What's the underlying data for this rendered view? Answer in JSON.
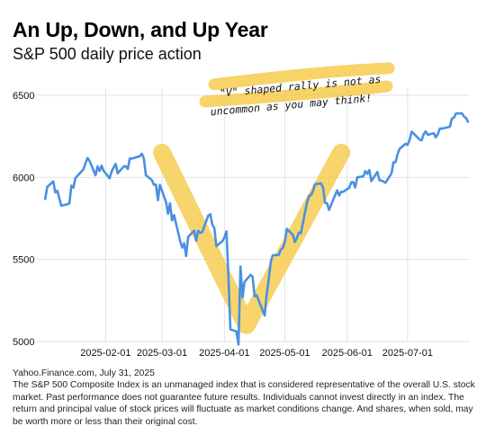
{
  "header": {
    "title": "An Up, Down, and Up Year",
    "subtitle": "S&P 500 daily price action"
  },
  "annotation": {
    "line1": "\"V\" shaped rally is not as",
    "line2": "uncommon as you may think!",
    "highlight_color": "#f5c842"
  },
  "footer": {
    "source": "Yahoo.Finance.com, July 31, 2025",
    "disclaimer": "The S&P 500 Composite Index is an unmanaged index that is considered representative of the overall U.S. stock market. Past performance does not guarantee future results. Individuals cannot invest directly in an index. The return and principal value of stock prices will fluctuate as market conditions change. And shares, when sold, may be worth more or less than their original cost."
  },
  "chart_data": {
    "type": "line",
    "x_type": "date",
    "xlim": [
      "2025-01-01",
      "2025-07-31"
    ],
    "ylim": [
      5000,
      6500
    ],
    "yticks": [
      5000,
      5500,
      6000,
      6500
    ],
    "xticks": [
      "2025-02-01",
      "2025-03-01",
      "2025-04-01",
      "2025-05-01",
      "2025-06-01",
      "2025-07-01"
    ],
    "grid": true,
    "line_color": "#4a90e2",
    "v_shape": {
      "color": "#f5c842",
      "points": [
        [
          "2025-03-01",
          6150
        ],
        [
          "2025-04-12",
          5100
        ],
        [
          "2025-05-29",
          6150
        ]
      ]
    },
    "series": [
      {
        "x": [
          "2025-01-02",
          "2025-01-03",
          "2025-01-06",
          "2025-01-07",
          "2025-01-08",
          "2025-01-10",
          "2025-01-13",
          "2025-01-14",
          "2025-01-15",
          "2025-01-16",
          "2025-01-17",
          "2025-01-21",
          "2025-01-22",
          "2025-01-23",
          "2025-01-24",
          "2025-01-27",
          "2025-01-28",
          "2025-01-29",
          "2025-01-30",
          "2025-01-31",
          "2025-02-03",
          "2025-02-04",
          "2025-02-05",
          "2025-02-06",
          "2025-02-07",
          "2025-02-10",
          "2025-02-11",
          "2025-02-12",
          "2025-02-13",
          "2025-02-14",
          "2025-02-18",
          "2025-02-19",
          "2025-02-20",
          "2025-02-21",
          "2025-02-24",
          "2025-02-25",
          "2025-02-26",
          "2025-02-27",
          "2025-02-28",
          "2025-03-03",
          "2025-03-04",
          "2025-03-05",
          "2025-03-06",
          "2025-03-07",
          "2025-03-10",
          "2025-03-11",
          "2025-03-12",
          "2025-03-13",
          "2025-03-14",
          "2025-03-17",
          "2025-03-18",
          "2025-03-19",
          "2025-03-20",
          "2025-03-21",
          "2025-03-24",
          "2025-03-25",
          "2025-03-26",
          "2025-03-27",
          "2025-03-28",
          "2025-03-31",
          "2025-04-01",
          "2025-04-02",
          "2025-04-03",
          "2025-04-04",
          "2025-04-07",
          "2025-04-08",
          "2025-04-09",
          "2025-04-10",
          "2025-04-11",
          "2025-04-14",
          "2025-04-15",
          "2025-04-16",
          "2025-04-17",
          "2025-04-21",
          "2025-04-22",
          "2025-04-23",
          "2025-04-24",
          "2025-04-25",
          "2025-04-28",
          "2025-04-29",
          "2025-04-30",
          "2025-05-01",
          "2025-05-02",
          "2025-05-05",
          "2025-05-06",
          "2025-05-07",
          "2025-05-08",
          "2025-05-09",
          "2025-05-12",
          "2025-05-13",
          "2025-05-14",
          "2025-05-15",
          "2025-05-16",
          "2025-05-19",
          "2025-05-20",
          "2025-05-21",
          "2025-05-22",
          "2025-05-23",
          "2025-05-27",
          "2025-05-28",
          "2025-05-29",
          "2025-05-30",
          "2025-06-02",
          "2025-06-03",
          "2025-06-04",
          "2025-06-05",
          "2025-06-06",
          "2025-06-09",
          "2025-06-10",
          "2025-06-11",
          "2025-06-12",
          "2025-06-13",
          "2025-06-16",
          "2025-06-17",
          "2025-06-18",
          "2025-06-20",
          "2025-06-23",
          "2025-06-24",
          "2025-06-25",
          "2025-06-26",
          "2025-06-27",
          "2025-06-30",
          "2025-07-01",
          "2025-07-02",
          "2025-07-03",
          "2025-07-07",
          "2025-07-08",
          "2025-07-09",
          "2025-07-10",
          "2025-07-11",
          "2025-07-14",
          "2025-07-15",
          "2025-07-16",
          "2025-07-17",
          "2025-07-18",
          "2025-07-21",
          "2025-07-22",
          "2025-07-23",
          "2025-07-24",
          "2025-07-25",
          "2025-07-28",
          "2025-07-29",
          "2025-07-30",
          "2025-07-31"
        ],
        "values": [
          5868,
          5942,
          5975,
          5909,
          5918,
          5827,
          5836,
          5842,
          5950,
          5937,
          5996,
          6049,
          6086,
          6118,
          6101,
          6012,
          6067,
          6039,
          6071,
          6040,
          5994,
          6037,
          6061,
          6083,
          6025,
          6066,
          6068,
          6051,
          6115,
          6114,
          6129,
          6144,
          6117,
          6013,
          5983,
          5955,
          5956,
          5861,
          5954,
          5849,
          5778,
          5842,
          5738,
          5770,
          5614,
          5572,
          5599,
          5521,
          5638,
          5675,
          5614,
          5675,
          5662,
          5667,
          5767,
          5776,
          5712,
          5693,
          5581,
          5612,
          5633,
          5671,
          5396,
          5074,
          5062,
          4982,
          5457,
          5268,
          5363,
          5406,
          5396,
          5275,
          5282,
          5158,
          5287,
          5376,
          5484,
          5525,
          5528,
          5560,
          5569,
          5604,
          5687,
          5650,
          5606,
          5631,
          5664,
          5660,
          5844,
          5886,
          5892,
          5916,
          5958,
          5963,
          5940,
          5845,
          5842,
          5802,
          5921,
          5889,
          5912,
          5912,
          5936,
          5970,
          5971,
          5939,
          6000,
          6006,
          6038,
          6022,
          6045,
          5977,
          6033,
          5982,
          5981,
          5967,
          6025,
          6092,
          6092,
          6141,
          6173,
          6205,
          6198,
          6227,
          6279,
          6230,
          6226,
          6263,
          6280,
          6259,
          6269,
          6244,
          6263,
          6297,
          6297,
          6305,
          6309,
          6359,
          6363,
          6389,
          6390,
          6371,
          6362,
          6339
        ]
      }
    ]
  }
}
